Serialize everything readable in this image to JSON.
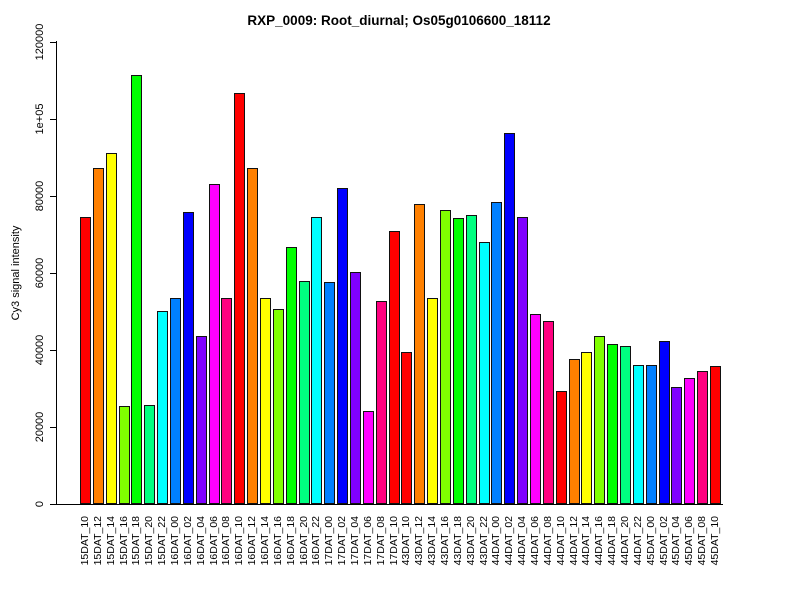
{
  "title": "RXP_0009: Root_diurnal; Os05g0106600_18112",
  "chart_data": {
    "type": "bar",
    "title": "RXP_0009: Root_diurnal; Os05g0106600_18112",
    "xlabel": "",
    "ylabel": "Cy3 signal intensity",
    "ylim": [
      0,
      120000
    ],
    "grid": false,
    "legend": "none",
    "x_tick_rotation_deg": 90,
    "y_tick_labels": [
      "0",
      "20000",
      "40000",
      "60000",
      "80000",
      "1e+05",
      "120000"
    ],
    "y_tick_values": [
      0,
      20000,
      40000,
      60000,
      80000,
      100000,
      120000
    ],
    "categories": [
      "15DAT_10",
      "15DAT_12",
      "15DAT_14",
      "15DAT_16",
      "15DAT_18",
      "15DAT_20",
      "15DAT_22",
      "16DAT_00",
      "16DAT_02",
      "16DAT_04",
      "16DAT_06",
      "16DAT_08",
      "16DAT_10",
      "16DAT_12",
      "16DAT_14",
      "16DAT_16",
      "16DAT_18",
      "16DAT_20",
      "16DAT_22",
      "17DAT_00",
      "17DAT_02",
      "17DAT_04",
      "17DAT_06",
      "17DAT_08",
      "17DAT_10",
      "43DAT_10",
      "43DAT_12",
      "43DAT_14",
      "43DAT_16",
      "43DAT_18",
      "43DAT_20",
      "43DAT_22",
      "44DAT_00",
      "44DAT_02",
      "44DAT_04",
      "44DAT_06",
      "44DAT_08",
      "44DAT_10",
      "44DAT_12",
      "44DAT_14",
      "44DAT_16",
      "44DAT_18",
      "44DAT_20",
      "44DAT_22",
      "45DAT_00",
      "45DAT_02",
      "45DAT_04",
      "45DAT_06",
      "45DAT_08",
      "45DAT_10"
    ],
    "values": [
      74400,
      87300,
      91000,
      25400,
      111300,
      25800,
      50000,
      53500,
      75900,
      43700,
      83000,
      53500,
      106600,
      87300,
      53600,
      50600,
      66800,
      57800,
      74600,
      57600,
      82100,
      60100,
      24200,
      52800,
      70900,
      39400,
      77800,
      53500,
      76300,
      74300,
      75000,
      68100,
      78300,
      96400,
      74600,
      49400,
      47600,
      29400,
      37700,
      39400,
      43500,
      41500,
      41100,
      36000,
      36200,
      42200,
      30500,
      32700,
      34600,
      35900
    ],
    "palette": [
      "#FF0000",
      "#FF8000",
      "#FFFF00",
      "#80FF00",
      "#00FF00",
      "#00FF80",
      "#00FFFF",
      "#0080FF",
      "#0000FF",
      "#8000FF",
      "#FF00FF",
      "#FF0080"
    ],
    "palette_rule": "12-hue rainbow cycles across bars and restarts at each 25-bar group",
    "palette_group_size": 25,
    "bar_border_color": "#111111",
    "axis_color": "#000000",
    "background_color": "#FFFFFF"
  }
}
